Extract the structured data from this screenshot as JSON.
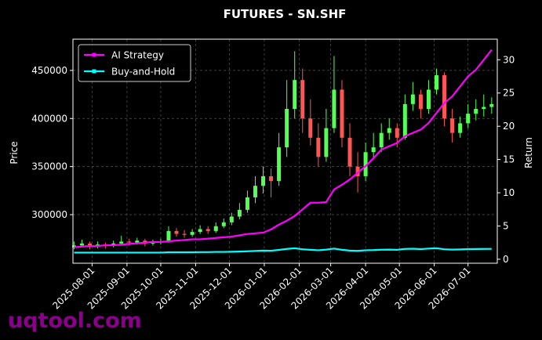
{
  "chart_data": {
    "type": "candlestick",
    "title": "FUTURES - SN.SHF",
    "ylabel": "Price",
    "y2label": "Return",
    "watermark": "uqtool.com",
    "x": [
      "2025-07-16",
      "2025-07-23",
      "2025-07-30",
      "2025-08-06",
      "2025-08-13",
      "2025-08-20",
      "2025-08-27",
      "2025-09-03",
      "2025-09-10",
      "2025-09-17",
      "2025-09-24",
      "2025-10-01",
      "2025-10-08",
      "2025-10-15",
      "2025-10-22",
      "2025-10-29",
      "2025-11-05",
      "2025-11-12",
      "2025-11-19",
      "2025-11-26",
      "2025-12-03",
      "2025-12-10",
      "2025-12-17",
      "2025-12-24",
      "2025-12-31",
      "2026-01-07",
      "2026-01-14",
      "2026-01-21",
      "2026-01-28",
      "2026-02-04",
      "2026-02-11",
      "2026-02-18",
      "2026-02-25",
      "2026-03-04",
      "2026-03-11",
      "2026-03-18",
      "2026-03-25",
      "2026-04-01",
      "2026-04-08",
      "2026-04-15",
      "2026-04-22",
      "2026-04-29",
      "2026-05-06",
      "2026-05-13",
      "2026-05-20",
      "2026-05-27",
      "2026-06-03",
      "2026-06-10",
      "2026-06-17",
      "2026-06-24",
      "2026-07-01",
      "2026-07-08",
      "2026-07-15",
      "2026-07-22"
    ],
    "open": [
      266000,
      268000,
      270000,
      267000,
      269000,
      268000,
      270000,
      272000,
      271000,
      273000,
      270000,
      271000,
      272000,
      283000,
      280000,
      279000,
      282000,
      285000,
      283000,
      288000,
      292000,
      298000,
      305000,
      318000,
      330000,
      340000,
      335000,
      370000,
      410000,
      440000,
      400000,
      380000,
      360000,
      390000,
      430000,
      380000,
      350000,
      340000,
      365000,
      370000,
      385000,
      390000,
      380000,
      415000,
      425000,
      410000,
      430000,
      445000,
      400000,
      385000,
      395000,
      405000,
      410000,
      412000
    ],
    "high": [
      272000,
      274000,
      272000,
      272000,
      271000,
      273000,
      278000,
      275000,
      276000,
      275000,
      274000,
      275000,
      288000,
      286000,
      284000,
      285000,
      289000,
      288000,
      292000,
      296000,
      302000,
      312000,
      325000,
      340000,
      350000,
      348000,
      385000,
      440000,
      470000,
      452000,
      420000,
      395000,
      410000,
      465000,
      440000,
      395000,
      365000,
      375000,
      385000,
      395000,
      400000,
      395000,
      425000,
      438000,
      430000,
      440000,
      452000,
      448000,
      410000,
      402000,
      415000,
      420000,
      425000,
      422000
    ],
    "low": [
      264000,
      266000,
      264000,
      265000,
      265000,
      266000,
      268000,
      268000,
      269000,
      267000,
      268000,
      269000,
      271000,
      277000,
      276000,
      277000,
      280000,
      280000,
      281000,
      286000,
      289000,
      295000,
      302000,
      312000,
      322000,
      318000,
      330000,
      360000,
      400000,
      385000,
      372000,
      350000,
      355000,
      385000,
      370000,
      340000,
      323000,
      335000,
      358000,
      365000,
      378000,
      370000,
      378000,
      408000,
      400000,
      405000,
      425000,
      392000,
      375000,
      380000,
      390000,
      398000,
      402000,
      405000
    ],
    "close": [
      268000,
      270000,
      267000,
      269000,
      268000,
      270000,
      272000,
      271000,
      273000,
      270000,
      271000,
      272000,
      283000,
      280000,
      279000,
      282000,
      285000,
      283000,
      288000,
      292000,
      298000,
      305000,
      318000,
      330000,
      340000,
      335000,
      370000,
      410000,
      440000,
      400000,
      380000,
      360000,
      390000,
      430000,
      380000,
      350000,
      340000,
      365000,
      370000,
      385000,
      390000,
      380000,
      415000,
      425000,
      410000,
      430000,
      445000,
      400000,
      385000,
      395000,
      405000,
      410000,
      412000,
      415000
    ],
    "up_color": "#55ff55",
    "down_color": "#ff5555",
    "series": [
      {
        "name": "AI Strategy",
        "color": "#ff00ff",
        "axis": "y2",
        "values": [
          1.8,
          1.9,
          2.0,
          2.0,
          2.1,
          2.1,
          2.2,
          2.3,
          2.4,
          2.5,
          2.6,
          2.6,
          2.7,
          2.8,
          2.9,
          3.0,
          3.0,
          3.1,
          3.2,
          3.3,
          3.4,
          3.6,
          3.8,
          3.9,
          4.0,
          4.5,
          5.2,
          5.8,
          6.5,
          7.5,
          8.5,
          8.5,
          8.6,
          10.5,
          11.2,
          12.0,
          13.0,
          14.0,
          15.2,
          16.5,
          17.0,
          17.5,
          18.5,
          19.0,
          19.5,
          20.5,
          22.0,
          23.5,
          24.5,
          26.0,
          27.5,
          28.5,
          30.0,
          31.5
        ]
      },
      {
        "name": "Buy-and-Hold",
        "color": "#00ffff",
        "axis": "y2",
        "values": [
          1.0,
          1.0,
          1.0,
          1.0,
          1.0,
          1.0,
          1.0,
          1.0,
          1.0,
          1.0,
          1.0,
          1.0,
          1.05,
          1.05,
          1.05,
          1.05,
          1.07,
          1.07,
          1.1,
          1.1,
          1.12,
          1.15,
          1.2,
          1.25,
          1.3,
          1.28,
          1.4,
          1.55,
          1.65,
          1.5,
          1.42,
          1.35,
          1.45,
          1.6,
          1.42,
          1.3,
          1.26,
          1.35,
          1.37,
          1.43,
          1.45,
          1.42,
          1.55,
          1.58,
          1.52,
          1.6,
          1.65,
          1.5,
          1.45,
          1.48,
          1.52,
          1.54,
          1.55,
          1.56
        ]
      }
    ],
    "xlim": [
      "2025-07-15",
      "2026-07-27"
    ],
    "xticks": [
      "2025-08-01",
      "2025-09-01",
      "2025-10-01",
      "2025-11-01",
      "2025-12-01",
      "2026-01-01",
      "2026-02-01",
      "2026-03-01",
      "2026-04-01",
      "2026-05-01",
      "2026-06-01",
      "2026-07-01"
    ],
    "ylim": [
      249500,
      482500
    ],
    "yticks": [
      300000,
      350000,
      400000,
      450000
    ],
    "y2lim": [
      -0.6,
      33.1
    ],
    "y2ticks": [
      0,
      5,
      10,
      15,
      20,
      25,
      30
    ],
    "grid": true,
    "legend": "upper left"
  }
}
